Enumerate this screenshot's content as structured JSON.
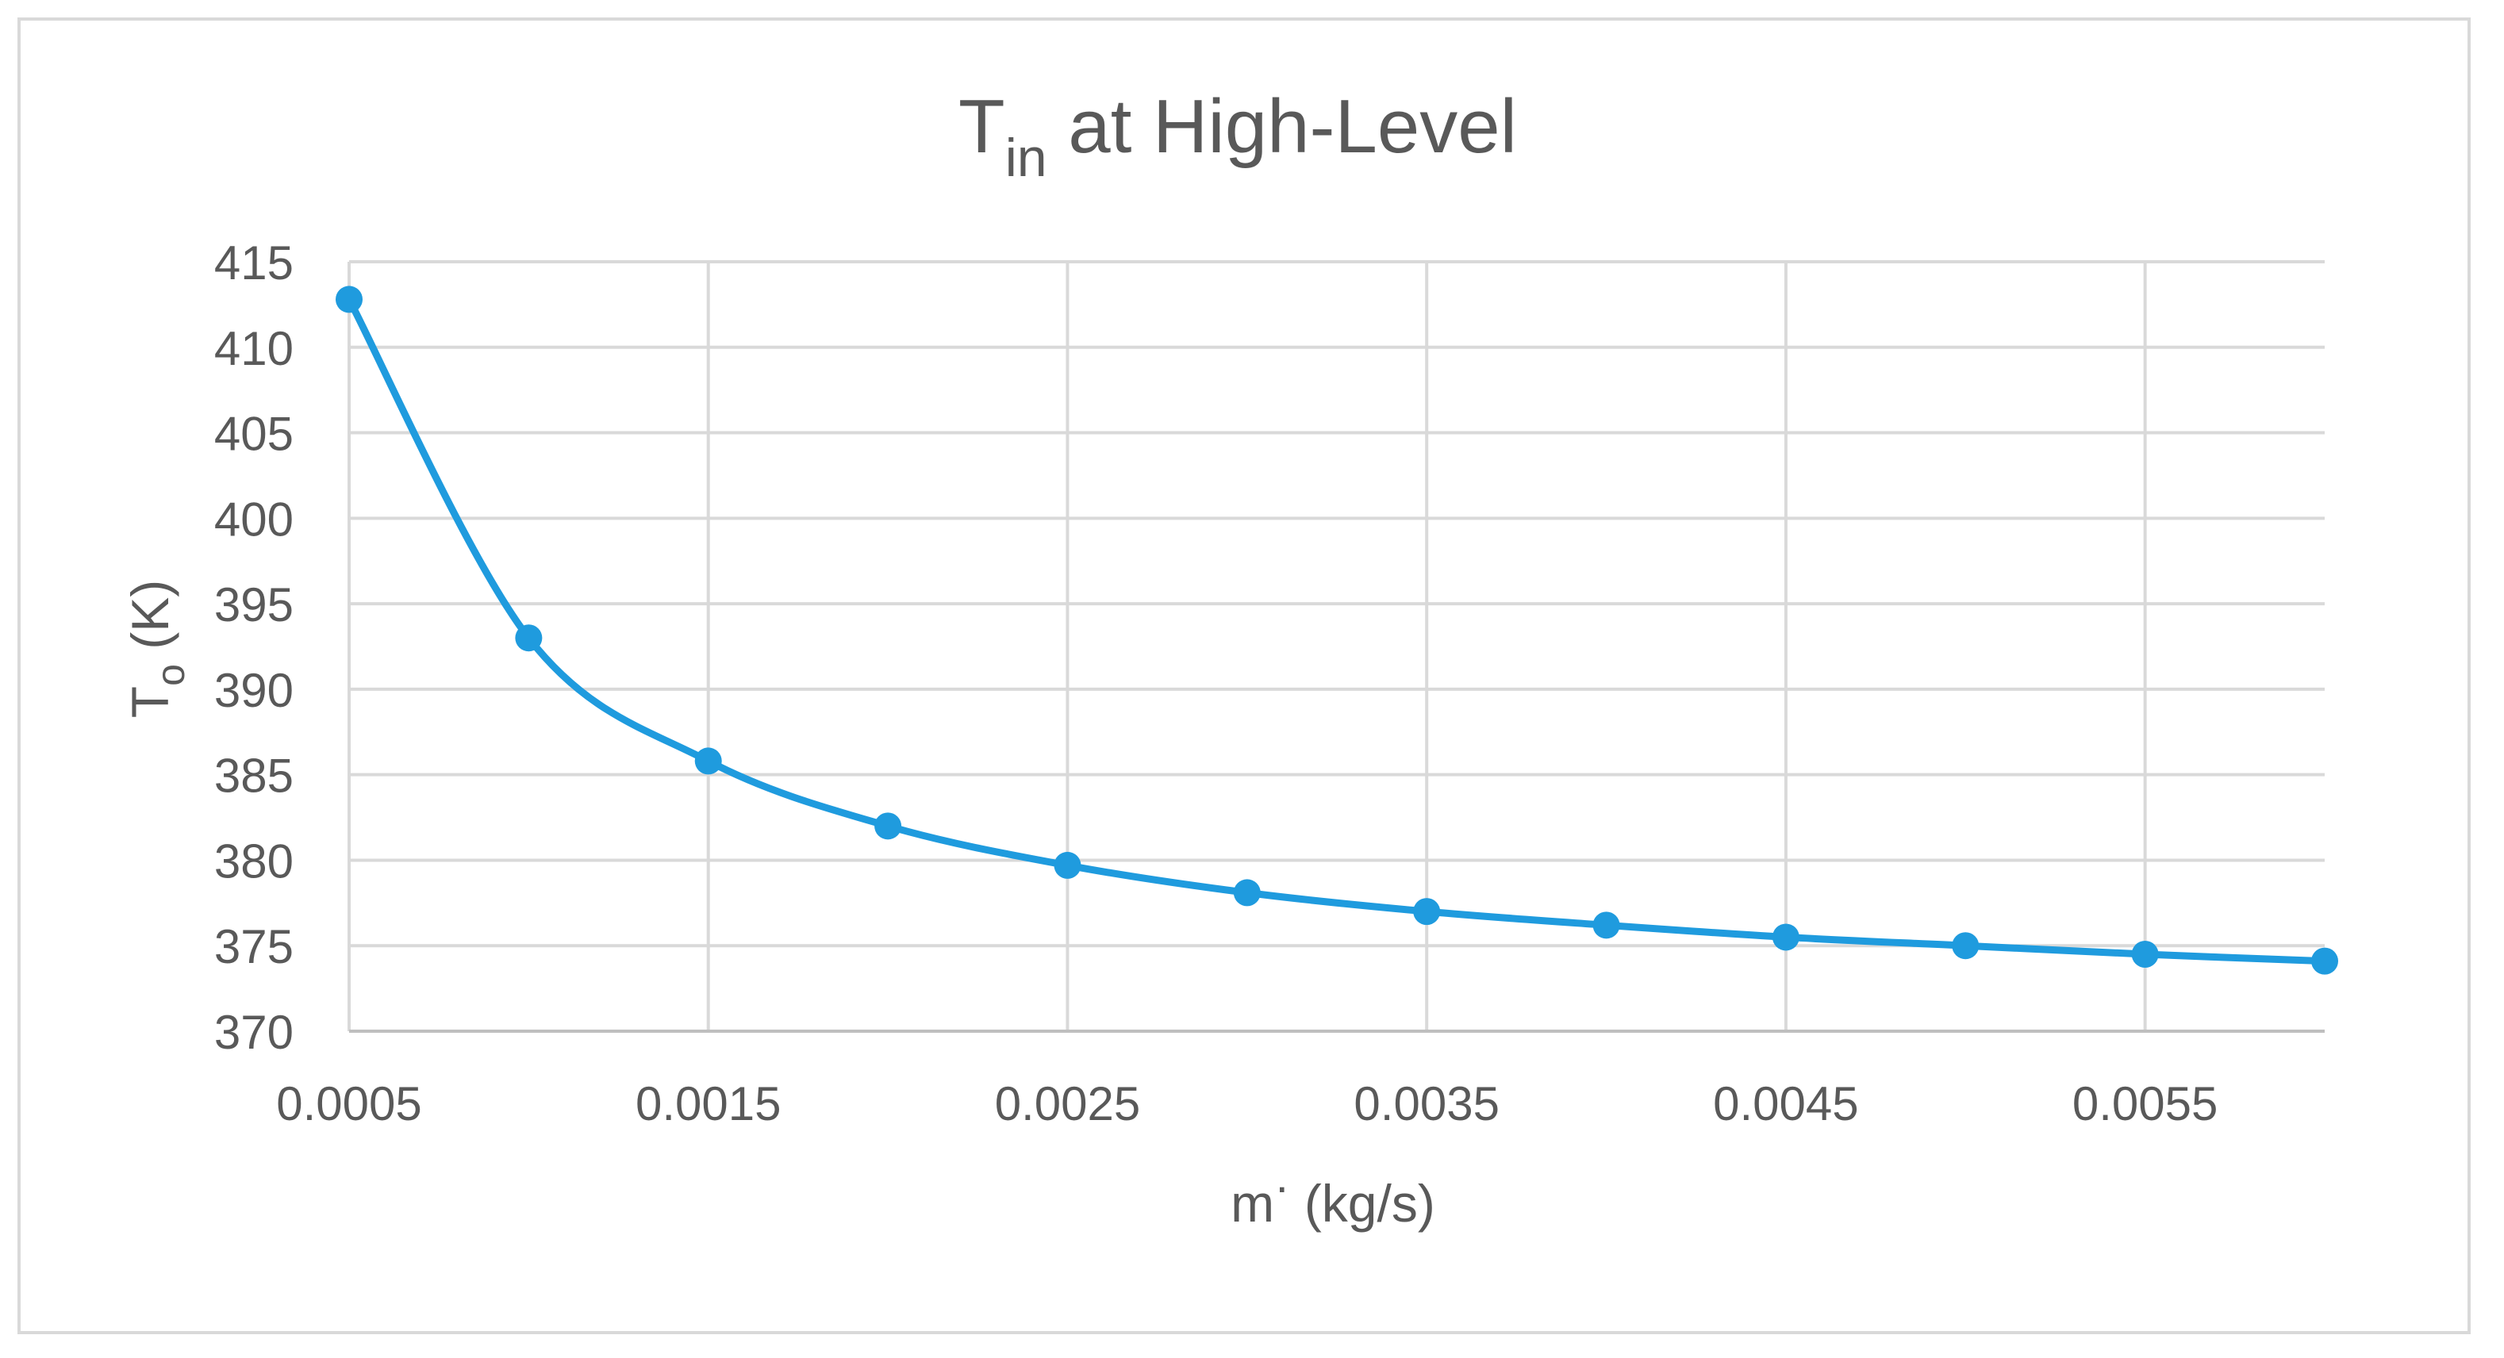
{
  "chart_data": {
    "type": "line",
    "title": {
      "main": "T",
      "subscript": "in",
      "rest": " at High-Level"
    },
    "xlabel": {
      "main": "m",
      "superscript": "·",
      "rest": " (kg/s)"
    },
    "ylabel": {
      "main": "T",
      "subscript": "o",
      "rest": " (K)"
    },
    "xlim": [
      0.0005,
      0.006
    ],
    "ylim": [
      370,
      415
    ],
    "x_ticks": [
      "0.0005",
      "0.0015",
      "0.0025",
      "0.0035",
      "0.0045",
      "0.0055"
    ],
    "y_ticks": [
      "370",
      "375",
      "380",
      "385",
      "390",
      "395",
      "400",
      "405",
      "410",
      "415"
    ],
    "grid": true,
    "smooth": true,
    "marker": "circle",
    "color": "#1f9bde",
    "series": [
      {
        "name": "T_o",
        "x": [
          0.0005,
          0.001,
          0.0015,
          0.002,
          0.0025,
          0.003,
          0.0035,
          0.004,
          0.0045,
          0.005,
          0.0055,
          0.006
        ],
        "y": [
          412.8,
          393.0,
          385.8,
          382.0,
          379.7,
          378.1,
          377.0,
          376.2,
          375.5,
          375.0,
          374.5,
          374.1
        ]
      }
    ]
  }
}
